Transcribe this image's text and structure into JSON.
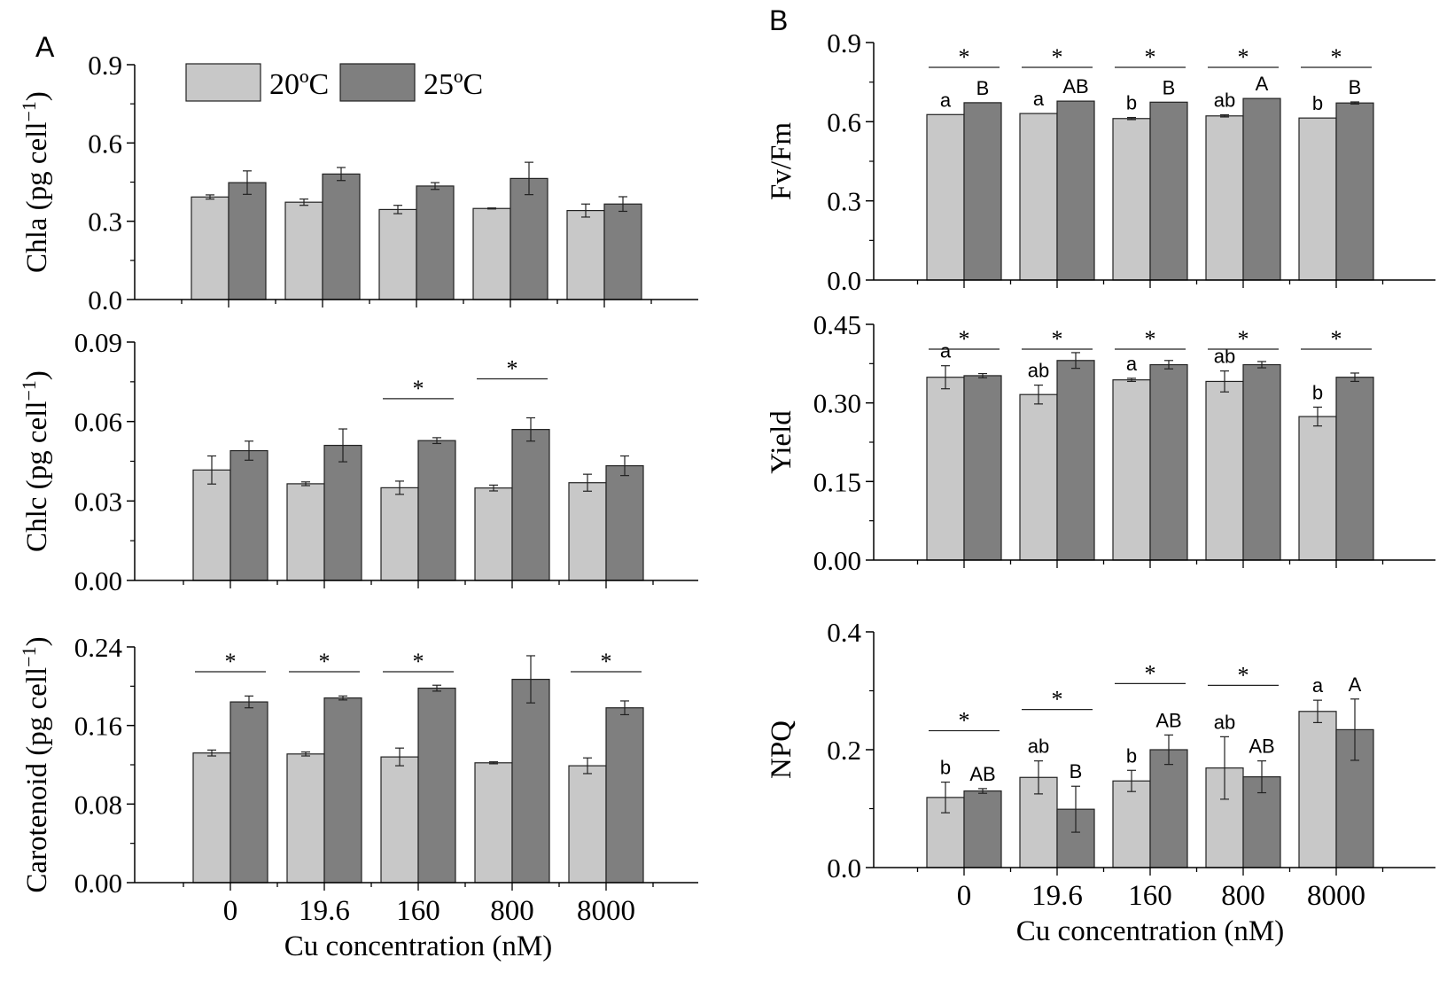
{
  "figure": {
    "panel_labels": [
      "A",
      "B"
    ],
    "legend": [
      {
        "label": "20ºC",
        "color": "#c8c8c8"
      },
      {
        "label": "25ºC",
        "color": "#7f7f7f"
      }
    ],
    "xlabel": "Cu concentration (nM)"
  },
  "chart_data": [
    {
      "id": "chla",
      "panel": "A",
      "type": "bar",
      "title": "",
      "xlabel": "",
      "ylabel": "Chla (pg cell−1)",
      "ylabel_base": "Chla (pg cell",
      "ylabel_sup": "−1",
      "ylabel_end": ")",
      "categories": [
        "0",
        "19.6",
        "160",
        "800",
        "8000"
      ],
      "ylim": [
        0,
        0.9
      ],
      "yticks": [
        "0.0",
        "0.3",
        "0.6",
        "0.9"
      ],
      "minor_ticks": true,
      "series": [
        {
          "name": "20ºC",
          "values": [
            0.393,
            0.373,
            0.345,
            0.349,
            0.341
          ],
          "errors": [
            0.008,
            0.012,
            0.016,
            0.002,
            0.025
          ],
          "letters": [
            "",
            "",
            "",
            "",
            ""
          ]
        },
        {
          "name": "25ºC",
          "values": [
            0.448,
            0.481,
            0.435,
            0.464,
            0.366
          ],
          "errors": [
            0.045,
            0.025,
            0.013,
            0.062,
            0.028
          ],
          "letters": [
            "",
            "",
            "",
            "",
            ""
          ]
        }
      ],
      "significance": [
        false,
        false,
        false,
        false,
        false
      ],
      "sig_symbol": "*"
    },
    {
      "id": "chlc",
      "panel": "A",
      "type": "bar",
      "title": "",
      "xlabel": "",
      "ylabel": "Chlc (pg cell−1)",
      "ylabel_base": "Chlc (pg cell",
      "ylabel_sup": "−1",
      "ylabel_end": ")",
      "categories": [
        "0",
        "19.6",
        "160",
        "800",
        "8000"
      ],
      "ylim": [
        0,
        0.09
      ],
      "yticks": [
        "0.00",
        "0.03",
        "0.06",
        "0.09"
      ],
      "minor_ticks": true,
      "series": [
        {
          "name": "20ºC",
          "values": [
            0.0417,
            0.0365,
            0.035,
            0.0349,
            0.0369
          ],
          "errors": [
            0.0053,
            0.0007,
            0.0025,
            0.0011,
            0.0032
          ],
          "letters": [
            "",
            "",
            "",
            "",
            ""
          ]
        },
        {
          "name": "25ºC",
          "values": [
            0.049,
            0.051,
            0.0528,
            0.057,
            0.0433
          ],
          "errors": [
            0.0036,
            0.0062,
            0.0011,
            0.0044,
            0.0037
          ],
          "letters": [
            "",
            "",
            "",
            "",
            ""
          ]
        }
      ],
      "significance": [
        false,
        false,
        true,
        true,
        false
      ],
      "sig_symbol": "*"
    },
    {
      "id": "carotenoid",
      "panel": "A",
      "type": "bar",
      "title": "",
      "xlabel": "Cu concentration (nM)",
      "ylabel": "Carotenoid (pg cell−1)",
      "ylabel_base": "Carotenoid (pg cell",
      "ylabel_sup": "−1",
      "ylabel_end": ")",
      "categories": [
        "0",
        "19.6",
        "160",
        "800",
        "8000"
      ],
      "ylim": [
        0,
        0.24
      ],
      "yticks": [
        "0.00",
        "0.08",
        "0.16",
        "0.24"
      ],
      "minor_ticks": true,
      "series": [
        {
          "name": "20ºC",
          "values": [
            0.132,
            0.131,
            0.128,
            0.122,
            0.119
          ],
          "errors": [
            0.003,
            0.002,
            0.009,
            0.001,
            0.008
          ],
          "letters": [
            "",
            "",
            "",
            "",
            ""
          ]
        },
        {
          "name": "25ºC",
          "values": [
            0.184,
            0.188,
            0.198,
            0.207,
            0.178
          ],
          "errors": [
            0.006,
            0.002,
            0.003,
            0.024,
            0.007
          ],
          "letters": [
            "",
            "",
            "",
            "",
            ""
          ]
        }
      ],
      "significance": [
        true,
        true,
        true,
        false,
        true
      ],
      "sig_symbol": "*"
    },
    {
      "id": "fvfm",
      "panel": "B",
      "type": "bar",
      "title": "",
      "xlabel": "",
      "ylabel": "Fv/Fm",
      "ylabel_base": "Fv/Fm",
      "ylabel_sup": "",
      "ylabel_end": "",
      "categories": [
        "0",
        "19.6",
        "160",
        "800",
        "8000"
      ],
      "ylim": [
        0,
        0.9
      ],
      "yticks": [
        "0.0",
        "0.3",
        "0.6",
        "0.9"
      ],
      "minor_ticks": true,
      "series": [
        {
          "name": "20ºC",
          "values": [
            0.627,
            0.631,
            0.612,
            0.622,
            0.614
          ],
          "errors": [
            0,
            0,
            0.004,
            0.004,
            0
          ],
          "letters": [
            "a",
            "a",
            "b",
            "ab",
            "b"
          ]
        },
        {
          "name": "25ºC",
          "values": [
            0.672,
            0.678,
            0.674,
            0.688,
            0.671
          ],
          "errors": [
            0,
            0,
            0,
            0,
            0.004
          ],
          "letters": [
            "B",
            "AB",
            "B",
            "A",
            "B"
          ]
        }
      ],
      "significance": [
        true,
        true,
        true,
        true,
        true
      ],
      "sig_symbol": "*"
    },
    {
      "id": "yield",
      "panel": "B",
      "type": "bar",
      "title": "",
      "xlabel": "",
      "ylabel": "Yield",
      "ylabel_base": "Yield",
      "ylabel_sup": "",
      "ylabel_end": "",
      "categories": [
        "0",
        "19.6",
        "160",
        "800",
        "8000"
      ],
      "ylim": [
        0,
        0.45
      ],
      "yticks": [
        "0.00",
        "0.15",
        "0.30",
        "0.45"
      ],
      "minor_ticks": true,
      "series": [
        {
          "name": "20ºC",
          "values": [
            0.349,
            0.316,
            0.344,
            0.341,
            0.274
          ],
          "errors": [
            0.022,
            0.018,
            0.003,
            0.02,
            0.018
          ],
          "letters": [
            "a",
            "ab",
            "a",
            "ab",
            "b"
          ]
        },
        {
          "name": "25ºC",
          "values": [
            0.352,
            0.381,
            0.373,
            0.373,
            0.349
          ],
          "errors": [
            0.004,
            0.015,
            0.008,
            0.006,
            0.008
          ],
          "letters": [
            "",
            "",
            "",
            "",
            ""
          ]
        }
      ],
      "significance": [
        true,
        true,
        true,
        true,
        true
      ],
      "sig_symbol": "*"
    },
    {
      "id": "npq",
      "panel": "B",
      "type": "bar",
      "title": "",
      "xlabel": "Cu concentration (nM)",
      "ylabel": "NPQ",
      "ylabel_base": "NPQ",
      "ylabel_sup": "",
      "ylabel_end": "",
      "categories": [
        "0",
        "19.6",
        "160",
        "800",
        "8000"
      ],
      "ylim": [
        0,
        0.4
      ],
      "yticks": [
        "0.0",
        "0.2",
        "0.4"
      ],
      "minor_ticks": true,
      "series": [
        {
          "name": "20ºC",
          "values": [
            0.119,
            0.153,
            0.147,
            0.169,
            0.265
          ],
          "errors": [
            0.026,
            0.028,
            0.018,
            0.053,
            0.019
          ],
          "letters": [
            "b",
            "ab",
            "b",
            "ab",
            "a"
          ]
        },
        {
          "name": "25ºC",
          "values": [
            0.13,
            0.099,
            0.2,
            0.154,
            0.234
          ],
          "errors": [
            0.004,
            0.039,
            0.025,
            0.027,
            0.052
          ],
          "letters": [
            "AB",
            "B",
            "AB",
            "AB",
            "A"
          ]
        }
      ],
      "significance": [
        true,
        true,
        true,
        true,
        false
      ],
      "sig_symbol": "*"
    }
  ]
}
